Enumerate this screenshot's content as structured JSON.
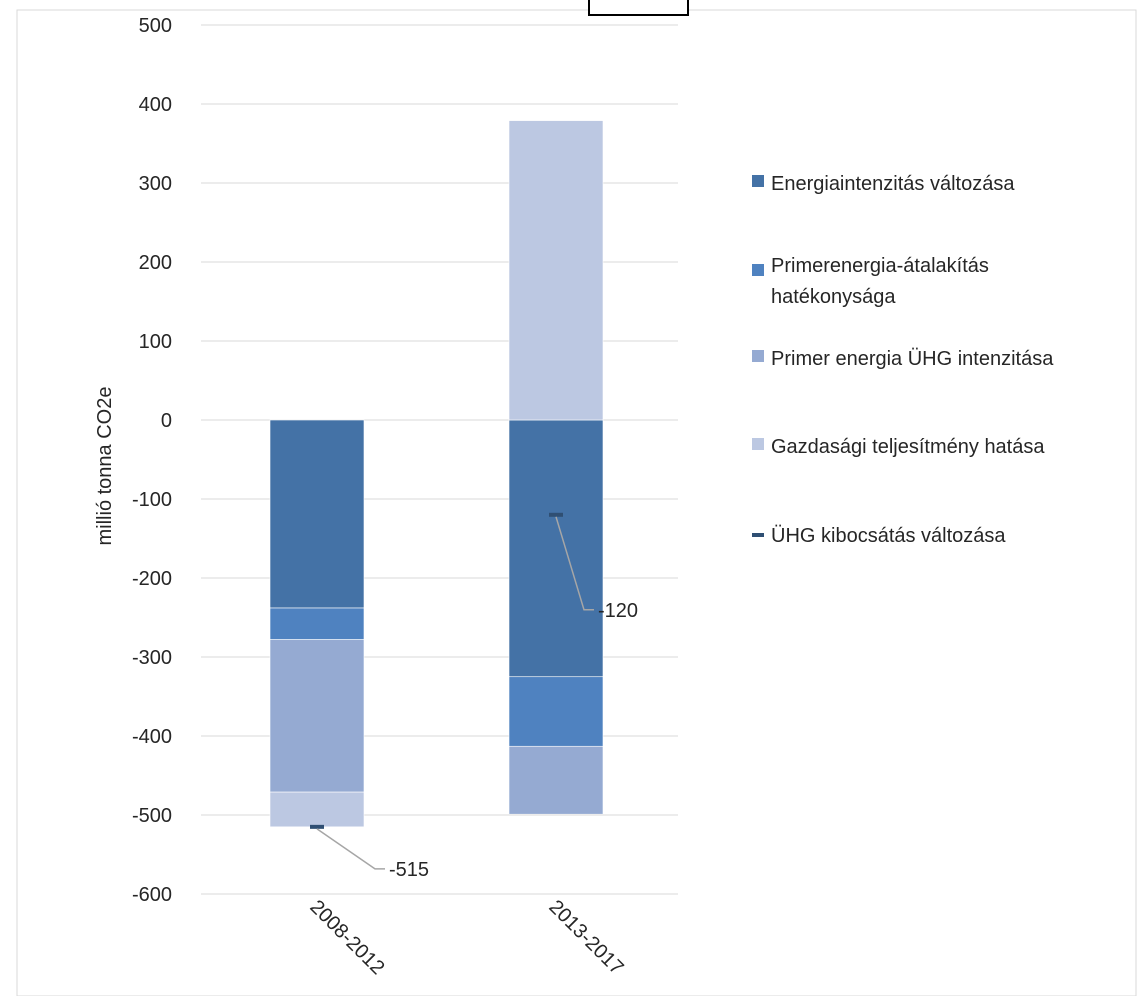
{
  "chart_data": {
    "type": "bar",
    "stacked": true,
    "title": "",
    "xlabel": "",
    "ylabel": "millió  tonna CO2e",
    "ylim": [
      -600,
      500
    ],
    "yticks": [
      500,
      400,
      300,
      200,
      100,
      0,
      -100,
      -200,
      -300,
      -400,
      -500,
      -600
    ],
    "ytick_labels": [
      "500",
      "400",
      "300",
      "200",
      "100",
      "0",
      "-100",
      "-200",
      "-300",
      "-400",
      "-500",
      "-600"
    ],
    "categories": [
      "2008-2012",
      "2013-2017"
    ],
    "grid": true,
    "legend_position": "right",
    "series": [
      {
        "name": "Energiaintenzitás változása",
        "color": "#4472a6",
        "values": [
          -238,
          -325
        ]
      },
      {
        "name": "Primerenergia-átalakítás hatékonysága",
        "color": "#4f82c0",
        "values": [
          -40,
          -88
        ]
      },
      {
        "name": "Primer energia ÜHG intenzitása",
        "color": "#95aad2",
        "values": [
          -193,
          -86
        ]
      },
      {
        "name": "Gazdasági teljesítmény hatása",
        "color": "#bcc8e2",
        "values": [
          -44,
          379
        ]
      }
    ],
    "line_series": {
      "name": "ÜHG kibocsátás változása",
      "color": "#2f4f73",
      "values": [
        -515,
        -120
      ],
      "data_labels": [
        "-515",
        "-120"
      ]
    }
  }
}
